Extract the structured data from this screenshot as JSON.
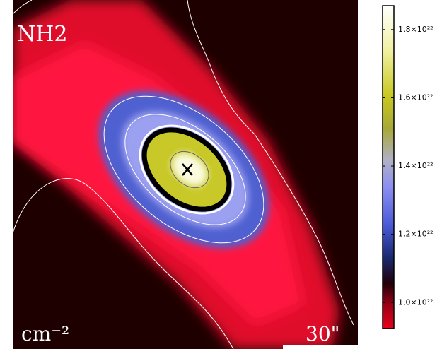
{
  "chart_data": {
    "type": "colormap",
    "map_label": "NH2",
    "unit_label": "cm⁻²",
    "scale_label": "30\"",
    "ylim": [
      9.24e+21,
      1.87e+22
    ],
    "yticks": [
      {
        "value": 1e+22,
        "label": "1.0×10²²"
      },
      {
        "value": 1.2e+22,
        "label": "1.2×10²²"
      },
      {
        "value": 1.4e+22,
        "label": "1.4×10²²"
      },
      {
        "value": 1.6e+22,
        "label": "1.6×10²²"
      },
      {
        "value": 1.8e+22,
        "label": "1.8×10²²"
      }
    ]
  }
}
